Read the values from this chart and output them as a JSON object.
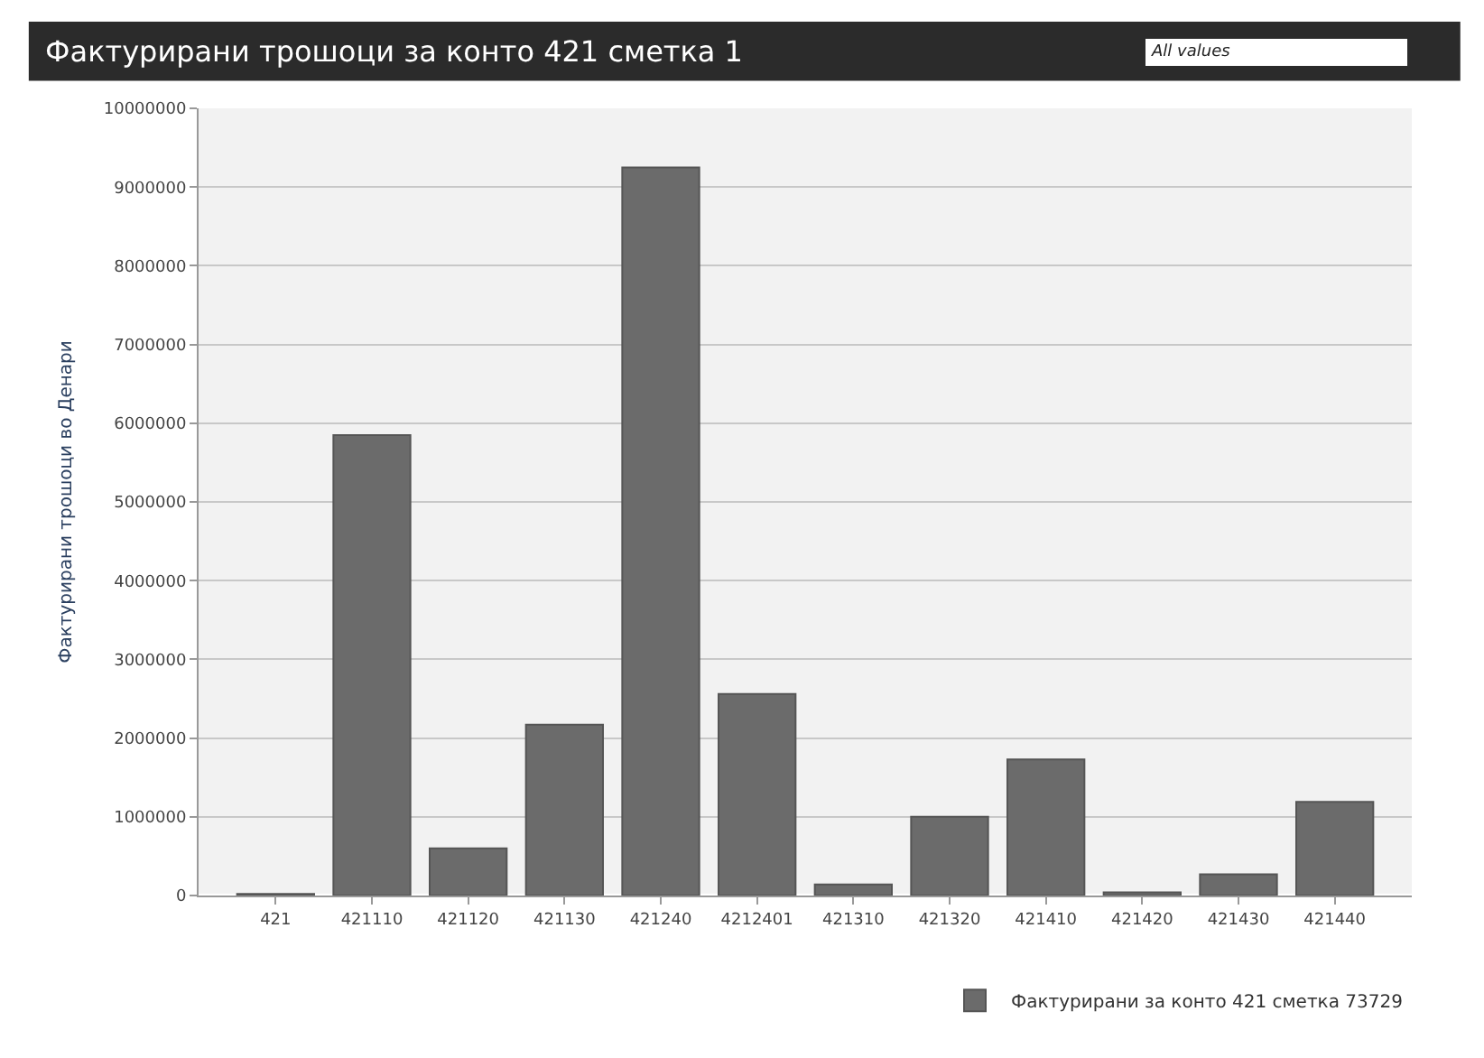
{
  "chart_data": {
    "type": "bar",
    "title": "Фактурирани трошоци за конто 421 сметка 1",
    "ylabel": "Фактурирани трошоци во Денари",
    "annotations": [
      "All values"
    ],
    "categories": [
      "421",
      "421110",
      "421120",
      "421130",
      "421240",
      "4212401",
      "421310",
      "421320",
      "421410",
      "421420",
      "421430",
      "421440"
    ],
    "series": [
      {
        "name": "Фактурирани за конто 421 сметка 73729",
        "color": "#6b6b6b",
        "values": [
          20000,
          5850000,
          600000,
          2170000,
          9250000,
          2560000,
          140000,
          1000000,
          1730000,
          40000,
          270000,
          1190000
        ]
      }
    ],
    "ylim": [
      0,
      10000000
    ],
    "yticks": [
      0,
      1000000,
      2000000,
      3000000,
      4000000,
      5000000,
      6000000,
      7000000,
      8000000,
      9000000,
      10000000
    ],
    "grid": "y",
    "legend": "bottom right"
  }
}
